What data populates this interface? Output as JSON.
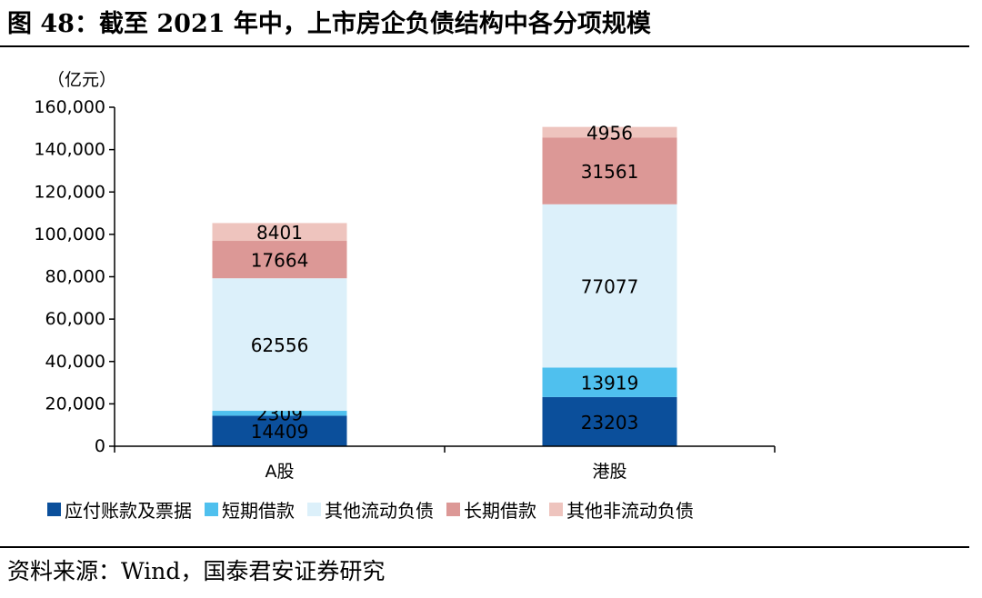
{
  "header": {
    "title": "图 48：截至 2021 年中，上市房企负债结构中各分项规模"
  },
  "footer": {
    "source": "资料来源：Wind，国泰君安证券研究"
  },
  "chart_data": {
    "type": "bar",
    "stacked": true,
    "unit_label": "（亿元）",
    "categories": [
      "A股",
      "港股"
    ],
    "series": [
      {
        "name": "应付账款及票据",
        "color": "#0B4F9B",
        "values": [
          14409,
          23203
        ]
      },
      {
        "name": "短期借款",
        "color": "#4FC0EE",
        "values": [
          2309,
          13919
        ]
      },
      {
        "name": "其他流动负债",
        "color": "#DCF0FA",
        "values": [
          62556,
          77077
        ]
      },
      {
        "name": "长期借款",
        "color": "#DC9896",
        "values": [
          17664,
          31561
        ]
      },
      {
        "name": "其他非流动负债",
        "color": "#EEC4BE",
        "values": [
          8401,
          4956
        ]
      }
    ],
    "ylim": [
      0,
      160000
    ],
    "yticks": [
      0,
      20000,
      40000,
      60000,
      80000,
      100000,
      120000,
      140000,
      160000
    ],
    "ytick_labels": [
      "0",
      "20,000",
      "40,000",
      "60,000",
      "80,000",
      "100,000",
      "120,000",
      "140,000",
      "160,000"
    ],
    "legend_position": "bottom",
    "grid": false
  }
}
